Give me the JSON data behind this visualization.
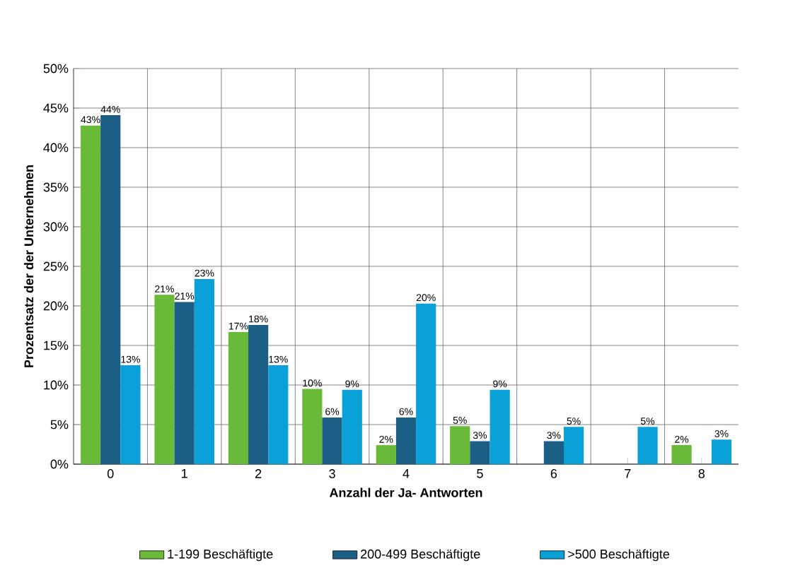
{
  "chart_data": {
    "type": "bar",
    "xlabel": "Anzahl der Ja- Antworten",
    "ylabel": "Prozentsatz der der Unternehmen",
    "categories": [
      "0",
      "1",
      "2",
      "3",
      "4",
      "5",
      "6",
      "7",
      "8"
    ],
    "series": [
      {
        "name": "1-199 Beschäftigte",
        "color": "#6aba3a",
        "values": [
          42.8,
          21.4,
          16.7,
          9.5,
          2.4,
          4.8,
          null,
          null,
          2.4
        ],
        "value_labels": [
          "43%",
          "21%",
          "17%",
          "10%",
          "2%",
          "5%",
          null,
          null,
          "2%"
        ]
      },
      {
        "name": "200-499 Beschäftigte",
        "color": "#1b5e86",
        "values": [
          44.1,
          20.5,
          17.6,
          5.9,
          5.9,
          2.9,
          2.9,
          null,
          null
        ],
        "value_labels": [
          "44%",
          "21%",
          "18%",
          "6%",
          "6%",
          "3%",
          "3%",
          null,
          null
        ]
      },
      {
        "name": ">500 Beschäftigte",
        "color": "#0aa0d8",
        "values": [
          12.5,
          23.4,
          12.5,
          9.4,
          20.3,
          9.4,
          4.7,
          4.7,
          3.1
        ],
        "value_labels": [
          "13%",
          "23%",
          "13%",
          "9%",
          "20%",
          "9%",
          "5%",
          "5%",
          "3%"
        ]
      }
    ],
    "ylim": [
      0,
      50
    ],
    "yticks": [
      {
        "value": 0,
        "label": "0%"
      },
      {
        "value": 5,
        "label": "5%"
      },
      {
        "value": 10,
        "label": "10%"
      },
      {
        "value": 15,
        "label": "15%"
      },
      {
        "value": 20,
        "label": "20%"
      },
      {
        "value": 25,
        "label": "25%"
      },
      {
        "value": 30,
        "label": "30%"
      },
      {
        "value": 35,
        "label": "35%"
      },
      {
        "value": 40,
        "label": "40%"
      },
      {
        "value": 45,
        "label": "45%"
      },
      {
        "value": 50,
        "label": "50%"
      }
    ],
    "grid": true,
    "legend": "bottom"
  }
}
